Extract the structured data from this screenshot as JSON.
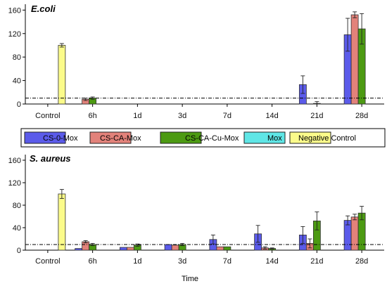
{
  "chart_data": [
    {
      "type": "bar",
      "title": "E.coli",
      "categories": [
        "Control",
        "6h",
        "1d",
        "3d",
        "7d",
        "14d",
        "21d",
        "28d"
      ],
      "ylim": [
        0,
        170
      ],
      "yticks": [
        0,
        40,
        80,
        120,
        160
      ],
      "threshold": 10,
      "series": [
        {
          "name": "CS-0-Mox",
          "values": [
            0,
            0,
            0,
            0,
            0,
            0,
            33,
            118
          ],
          "errors": [
            0,
            0,
            0,
            0,
            0,
            0,
            15,
            28
          ]
        },
        {
          "name": "CS-CA-Mox",
          "values": [
            0,
            8,
            0,
            0,
            0,
            0,
            0,
            152
          ],
          "errors": [
            0,
            2,
            0,
            0,
            0,
            0,
            0,
            5
          ]
        },
        {
          "name": "CS-CA-Cu-Mox",
          "values": [
            0,
            10,
            0,
            0,
            0,
            0,
            1,
            128
          ],
          "errors": [
            0,
            2,
            0,
            0,
            0,
            0,
            3,
            26
          ]
        },
        {
          "name": "Mox",
          "values": [
            0,
            0,
            0,
            0,
            0,
            0,
            0,
            0
          ],
          "errors": [
            0,
            0,
            0,
            0,
            0,
            0,
            0,
            0
          ]
        },
        {
          "name": "Negative Control",
          "values": [
            100,
            0,
            0,
            0,
            0,
            0,
            0,
            0
          ],
          "errors": [
            3,
            0,
            0,
            0,
            0,
            0,
            0,
            0
          ]
        }
      ]
    },
    {
      "type": "bar",
      "title": "S. aureus",
      "categories": [
        "Control",
        "6h",
        "1d",
        "3d",
        "7d",
        "14d",
        "21d",
        "28d"
      ],
      "ylim": [
        0,
        170
      ],
      "yticks": [
        0,
        40,
        80,
        120,
        160
      ],
      "threshold": 10,
      "xlabel": "Time",
      "series": [
        {
          "name": "CS-0-Mox",
          "values": [
            0,
            3,
            5,
            10,
            19,
            29,
            27,
            53
          ],
          "errors": [
            0,
            0,
            0,
            0,
            8,
            15,
            15,
            8
          ]
        },
        {
          "name": "CS-CA-Mox",
          "values": [
            0,
            15,
            5,
            9,
            6,
            4,
            12,
            59
          ],
          "errors": [
            0,
            2,
            0,
            0,
            0,
            2,
            8,
            5
          ]
        },
        {
          "name": "CS-CA-Cu-Mox",
          "values": [
            0,
            10,
            9,
            10,
            6,
            3,
            52,
            66
          ],
          "errors": [
            0,
            2,
            2,
            2,
            0,
            1,
            16,
            12
          ]
        },
        {
          "name": "Mox",
          "values": [
            0,
            0,
            0,
            0,
            0,
            0,
            0,
            0
          ],
          "errors": [
            0,
            0,
            0,
            0,
            0,
            0,
            0,
            0
          ]
        },
        {
          "name": "Negative Control",
          "values": [
            100,
            0,
            0,
            0,
            0,
            0,
            0,
            0
          ],
          "errors": [
            8,
            0,
            0,
            0,
            0,
            0,
            0,
            0
          ]
        }
      ]
    }
  ],
  "legend": {
    "items": [
      {
        "label": "CS-0-Mox",
        "color": "#5b5bea"
      },
      {
        "label": "CS-CA-Mox",
        "color": "#e2827a"
      },
      {
        "label": "CS-CA-Cu-Mox",
        "color": "#4c9a12"
      },
      {
        "label": "Mox",
        "color": "#5fe6e6"
      },
      {
        "label": "Negative Control",
        "color": "#fbfb8a"
      }
    ]
  }
}
